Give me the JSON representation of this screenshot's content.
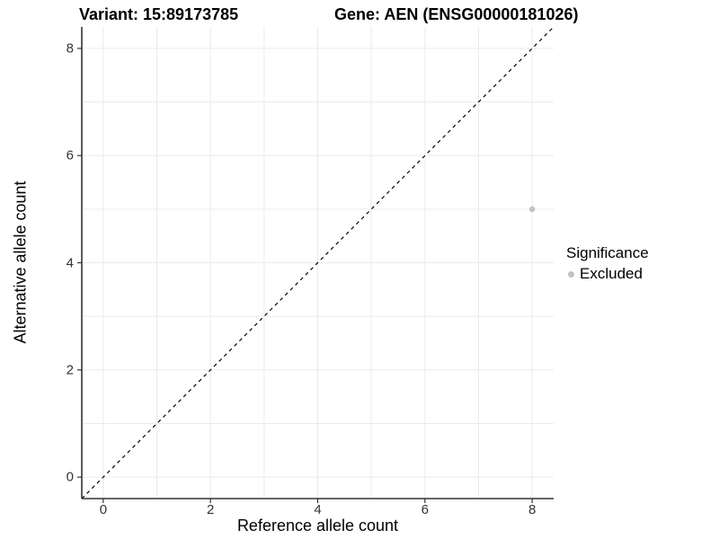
{
  "header": {
    "variant_title": "Variant: 15:89173785",
    "gene_title": "Gene: AEN (ENSG00000181026)"
  },
  "axes": {
    "x_label": "Reference allele count",
    "y_label": "Alternative allele count",
    "x_tick_labels": [
      "0",
      "2",
      "4",
      "6",
      "8"
    ],
    "y_tick_labels": [
      "0",
      "2",
      "4",
      "6",
      "8"
    ]
  },
  "legend": {
    "title": "Significance",
    "items": [
      {
        "label": "Excluded",
        "color": "#c1c1c1"
      }
    ]
  },
  "chart_data": {
    "type": "scatter",
    "title": "Variant: 15:89173785 / Gene: AEN (ENSG00000181026)",
    "xlabel": "Reference allele count",
    "ylabel": "Alternative allele count",
    "xlim": [
      -0.4,
      8.4
    ],
    "ylim": [
      -0.4,
      8.4
    ],
    "x_ticks": [
      0,
      2,
      4,
      6,
      8
    ],
    "y_ticks": [
      0,
      2,
      4,
      6,
      8
    ],
    "gridlines": {
      "x": [
        0,
        1,
        2,
        3,
        4,
        5,
        6,
        7,
        8
      ],
      "y": [
        0,
        1,
        2,
        3,
        4,
        5,
        6,
        7,
        8
      ],
      "color": "#ebebeb"
    },
    "series": [
      {
        "name": "Excluded",
        "color": "#c1c1c1",
        "points": [
          {
            "x": 8,
            "y": 5
          }
        ]
      }
    ],
    "reference_line": {
      "type": "identity",
      "equation": "y = x",
      "style": "dashed",
      "color": "#000000"
    },
    "legend_position": "right",
    "legend_title": "Significance",
    "axis_color": "#333333"
  }
}
